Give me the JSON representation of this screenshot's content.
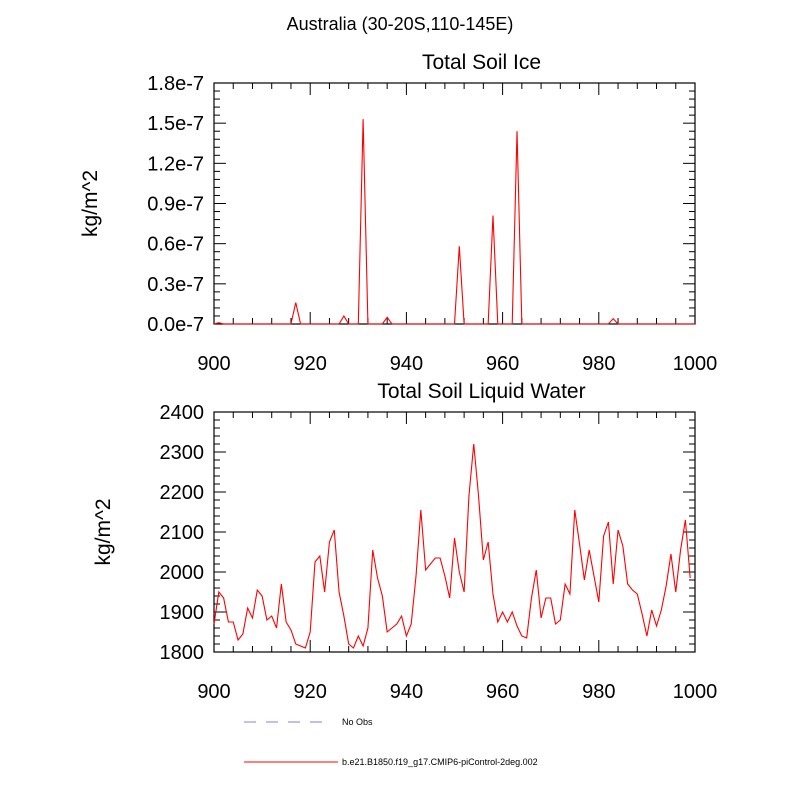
{
  "figure": {
    "suptitle": "Australia (30-20S,110-145E)"
  },
  "colors": {
    "model": "#ff0000",
    "obs": "#9999ee",
    "axis": "#000000"
  },
  "legend": {
    "obs_label": "No Obs",
    "model_label": "b.e21.B1850.f19_g17.CMIP6-piControl-2deg.002"
  },
  "chart_data": [
    {
      "type": "line",
      "title": "Total Soil Ice",
      "xlabel": "",
      "ylabel": "kg/m^2",
      "xlim": [
        900,
        1000
      ],
      "ylim": [
        0,
        1.8e-07
      ],
      "xticks": [
        900,
        920,
        940,
        960,
        980,
        1000
      ],
      "xtick_labels": [
        "900",
        "920",
        "940",
        "960",
        "980",
        "1000"
      ],
      "yticks": [
        0,
        3e-08,
        6e-08,
        9e-08,
        1.2e-07,
        1.5e-07,
        1.8e-07
      ],
      "ytick_labels": [
        "0.0e-7",
        "0.3e-7",
        "0.6e-7",
        "0.9e-7",
        "1.2e-7",
        "1.5e-7",
        "1.8e-7"
      ],
      "x_start": 900,
      "series": [
        {
          "name": "b.e21.B1850.f19_g17.CMIP6-piControl-2deg.002",
          "values": [
            0,
            1e-09,
            0,
            0,
            0,
            0,
            0,
            0,
            0,
            0,
            0,
            0,
            0,
            0,
            0,
            0,
            0,
            1.6e-08,
            0,
            0,
            0,
            0,
            0,
            0,
            0,
            0,
            0,
            6e-09,
            0,
            0,
            0,
            1.53e-07,
            0,
            0,
            0,
            0,
            5e-09,
            0,
            0,
            0,
            0,
            0,
            0,
            0,
            0,
            0,
            0,
            0,
            0,
            0,
            0,
            5.8e-08,
            0,
            0,
            0,
            0,
            0,
            0,
            8.1e-08,
            0,
            0,
            0,
            0,
            1.44e-07,
            0,
            0,
            0,
            0,
            0,
            0,
            0,
            0,
            0,
            0,
            0,
            0,
            0,
            0,
            0,
            0,
            0,
            0,
            0,
            4e-09,
            0,
            0,
            0,
            0,
            0,
            0,
            0,
            0,
            0,
            0,
            0,
            0,
            0,
            0,
            0,
            0,
            0
          ]
        }
      ]
    },
    {
      "type": "line",
      "title": "Total Soil Liquid Water",
      "xlabel": "",
      "ylabel": "kg/m^2",
      "xlim": [
        900,
        1000
      ],
      "ylim": [
        1800,
        2400
      ],
      "xticks": [
        900,
        920,
        940,
        960,
        980,
        1000
      ],
      "xtick_labels": [
        "900",
        "920",
        "940",
        "960",
        "980",
        "1000"
      ],
      "yticks": [
        1800,
        1900,
        2000,
        2100,
        2200,
        2300,
        2400
      ],
      "ytick_labels": [
        "1800",
        "1900",
        "2000",
        "2100",
        "2200",
        "2300",
        "2400"
      ],
      "x_start": 900,
      "series": [
        {
          "name": "b.e21.B1850.f19_g17.CMIP6-piControl-2deg.002",
          "values": [
            1870,
            1950,
            1935,
            1875,
            1875,
            1830,
            1845,
            1910,
            1885,
            1955,
            1940,
            1880,
            1890,
            1860,
            1970,
            1875,
            1855,
            1820,
            1815,
            1810,
            1850,
            2025,
            2040,
            1950,
            2075,
            2105,
            1950,
            1890,
            1820,
            1810,
            1840,
            1815,
            1860,
            2055,
            1985,
            1940,
            1850,
            1860,
            1870,
            1890,
            1840,
            1870,
            1990,
            2155,
            2005,
            2020,
            2035,
            2035,
            1990,
            1935,
            2085,
            2000,
            1950,
            2190,
            2320,
            2190,
            2030,
            2075,
            1945,
            1875,
            1900,
            1875,
            1900,
            1865,
            1840,
            1835,
            1935,
            2005,
            1885,
            1935,
            1935,
            1870,
            1880,
            1970,
            1945,
            2155,
            2070,
            1980,
            2055,
            1990,
            1925,
            2090,
            2125,
            1970,
            2105,
            2065,
            1970,
            1955,
            1945,
            1895,
            1840,
            1905,
            1865,
            1905,
            1965,
            2045,
            1950,
            2055,
            2130,
            1985
          ]
        }
      ]
    }
  ]
}
